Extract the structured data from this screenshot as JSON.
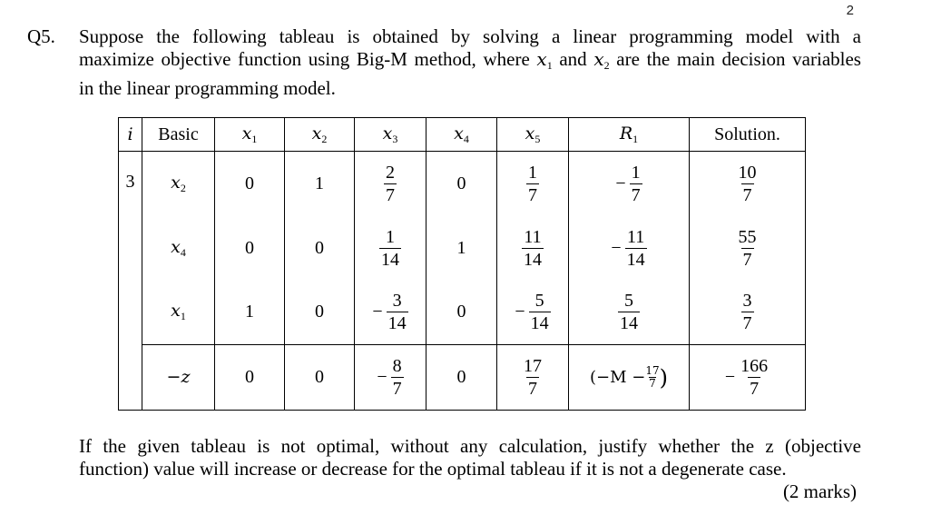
{
  "page_number": "2",
  "question": {
    "label": "Q5.",
    "line1": "Suppose the following tableau is obtained by solving a linear programming model with a",
    "line2_a": "maximize objective function using Big-M method, where ",
    "line2_x1": "x",
    "line2_x1_sub": "1",
    "line2_and": " and ",
    "line2_x2": "x",
    "line2_x2_sub": "2",
    "line2_b": " are the main decision variables",
    "line3": "in the linear programming model."
  },
  "table": {
    "headers": [
      "i",
      "Basic",
      "x1",
      "x2",
      "x3",
      "x4",
      "x5",
      "R1",
      "Solution."
    ],
    "header_var_base": "x",
    "header_var_subs": [
      "1",
      "2",
      "3",
      "4",
      "5"
    ],
    "header_r_base": "R",
    "header_r_sub": "1",
    "iteration": "3",
    "rows": [
      {
        "basic_base": "x",
        "basic_sub": "2",
        "x1": "0",
        "x2": "1",
        "x3": {
          "sign": "",
          "num": "2",
          "den": "7"
        },
        "x4": "0",
        "x5": {
          "sign": "",
          "num": "1",
          "den": "7"
        },
        "r1": {
          "sign": "−",
          "num": "1",
          "den": "7"
        },
        "sol": {
          "sign": "",
          "num": "10",
          "den": "7"
        }
      },
      {
        "basic_base": "x",
        "basic_sub": "4",
        "x1": "0",
        "x2": "0",
        "x3": {
          "sign": "",
          "num": "1",
          "den": "14"
        },
        "x4": "1",
        "x5": {
          "sign": "",
          "num": "11",
          "den": "14"
        },
        "r1": {
          "sign": "−",
          "num": "11",
          "den": "14"
        },
        "sol": {
          "sign": "",
          "num": "55",
          "den": "7"
        }
      },
      {
        "basic_base": "x",
        "basic_sub": "1",
        "x1": "1",
        "x2": "0",
        "x3": {
          "sign": "−",
          "num": "3",
          "den": "14"
        },
        "x4": "0",
        "x5": {
          "sign": "−",
          "num": "5",
          "den": "14"
        },
        "r1": {
          "sign": "",
          "num": "5",
          "den": "14"
        },
        "sol": {
          "sign": "",
          "num": "3",
          "den": "7"
        }
      }
    ],
    "z_row": {
      "basic": "−z",
      "x1": "0",
      "x2": "0",
      "x3": {
        "sign": "−",
        "num": "8",
        "den": "7"
      },
      "x4": "0",
      "x5": {
        "sign": "",
        "num": "17",
        "den": "7"
      },
      "r1": {
        "open": "(−M − ",
        "num": "17",
        "den": "7",
        "close": ")"
      },
      "sol": {
        "sign": "−",
        "num": "166",
        "den": "7"
      }
    }
  },
  "footer": {
    "line1": "If the given tableau is not optimal, without any calculation, justify whether the z (objective",
    "line2": "function) value will increase or decrease for the optimal tableau if it is not a degenerate case.",
    "marks": "(2 marks)"
  }
}
